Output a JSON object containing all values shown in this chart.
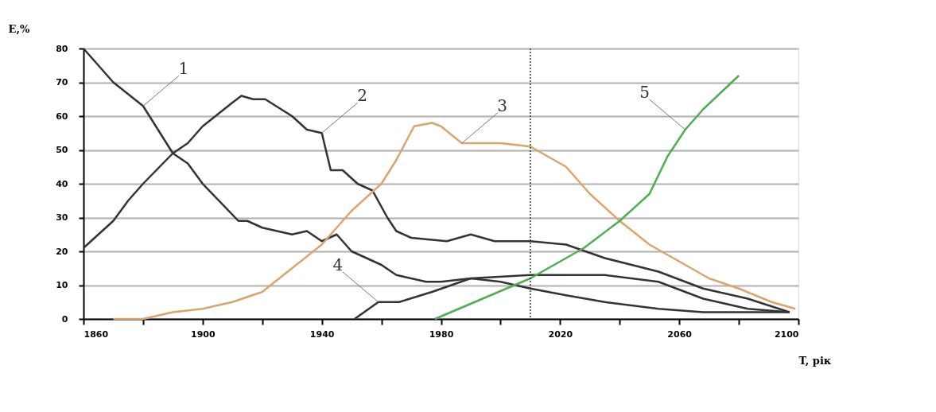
{
  "chart_data": {
    "type": "line",
    "xlabel": "T, рік",
    "ylabel": "E,%",
    "xlim": [
      1860,
      2100
    ],
    "ylim": [
      0,
      80
    ],
    "xticks": [
      1860,
      {
        "value": 1880,
        "label": null
      },
      1900,
      {
        "value": 1920,
        "label": null
      },
      1940,
      {
        "value": 1960,
        "label": null
      },
      1980,
      {
        "value": 2000,
        "label": null
      },
      2020,
      {
        "value": 2040,
        "label": null
      },
      2060,
      {
        "value": 2080,
        "label": null
      },
      2100
    ],
    "yticks": [
      0,
      10,
      20,
      30,
      40,
      50,
      60,
      70,
      80
    ],
    "grid": "y",
    "legend": false,
    "marker": "none",
    "line_style": "solid",
    "series": [
      {
        "color": "#333333",
        "x": [
          1860,
          1870,
          1880,
          1890,
          1895,
          1900,
          1912,
          1915,
          1920,
          1930,
          1935,
          1940,
          1945,
          1950,
          1960,
          1965,
          1970,
          1975,
          1980,
          1990,
          2000,
          2010,
          2022,
          2035,
          2053,
          2068,
          2083,
          2097
        ],
        "values": [
          80,
          70,
          63,
          49,
          46,
          40,
          29,
          29,
          27,
          25,
          26,
          23,
          25,
          20,
          16,
          13,
          12,
          11,
          11,
          12,
          11,
          9,
          7,
          5,
          3,
          2,
          2,
          2
        ]
      },
      {
        "color": "#333333",
        "x": [
          1860,
          1870,
          1875,
          1880,
          1890,
          1895,
          1900,
          1910,
          1913,
          1917,
          1921,
          1930,
          1935,
          1940,
          1943,
          1947,
          1952,
          1957,
          1962,
          1965,
          1970,
          1982,
          1990,
          1998,
          2010,
          2022,
          2035,
          2053,
          2068,
          2083,
          2097
        ],
        "values": [
          21,
          29,
          35,
          40,
          49,
          52,
          57,
          64,
          66,
          65,
          65,
          60,
          56,
          55,
          44,
          44,
          40,
          38,
          30,
          26,
          24,
          23,
          25,
          23,
          23,
          22,
          18,
          14,
          9,
          6,
          2
        ]
      },
      {
        "color": "#d9a56b",
        "x": [
          1870,
          1880,
          1890,
          1900,
          1910,
          1920,
          1930,
          1940,
          1950,
          1960,
          1965,
          1971,
          1977,
          1980,
          1987,
          2000,
          2010,
          2022,
          2030,
          2040,
          2050,
          2060,
          2070,
          2080,
          2091,
          2099
        ],
        "values": [
          0,
          0,
          2,
          3,
          5,
          8,
          15,
          22,
          32,
          40,
          47,
          57,
          58,
          57,
          52,
          52,
          51,
          45,
          37,
          29,
          22,
          17,
          12,
          9,
          5,
          3
        ]
      },
      {
        "color": "#333333",
        "x": [
          1951,
          1959,
          1966,
          1977,
          1990,
          2010,
          2035,
          2053,
          2068,
          2083,
          2097
        ],
        "values": [
          0,
          5,
          5,
          8,
          12,
          13,
          13,
          11,
          6,
          3,
          2
        ]
      },
      {
        "color": "#4caf50",
        "x": [
          1978,
          2010,
          2028,
          2040,
          2050,
          2056,
          2062,
          2068,
          2080
        ],
        "values": [
          0,
          12,
          21,
          29,
          37,
          48,
          56,
          62,
          72
        ]
      }
    ],
    "ref_lines": [
      {
        "axis": "x",
        "value": 2010,
        "color": "#333333",
        "line_style": "dotted"
      }
    ],
    "annotations": [
      {
        "text": "1",
        "x": 1880,
        "y": 63
      },
      {
        "text": "2",
        "x": 1940,
        "y": 55
      },
      {
        "text": "3",
        "x": 1987,
        "y": 52
      },
      {
        "text": "4",
        "x": 1959,
        "y": 5
      },
      {
        "text": "5",
        "x": 2062,
        "y": 56
      }
    ]
  }
}
